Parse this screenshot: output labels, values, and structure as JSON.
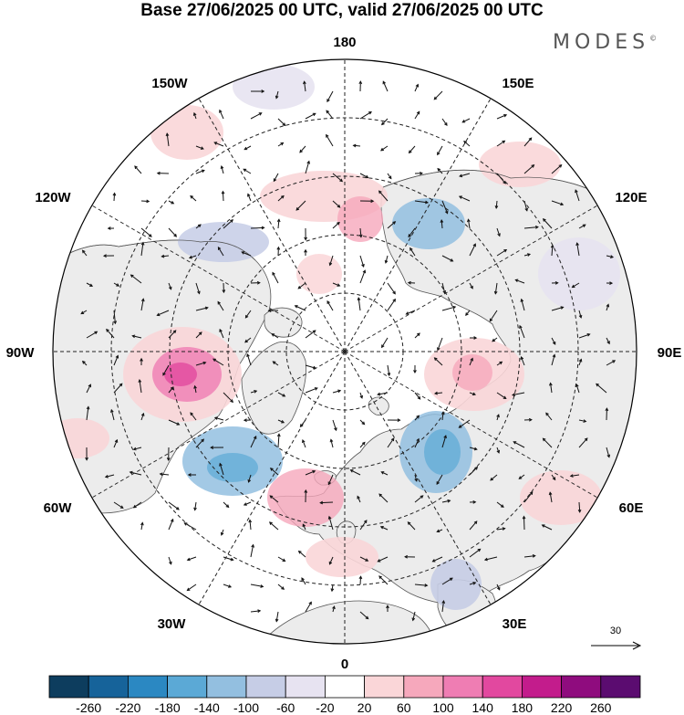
{
  "header": {
    "title": "Base 27/06/2025 00 UTC, valid 27/06/2025 00 UTC",
    "brand": "MODES",
    "brand_mark": "©"
  },
  "map": {
    "projection": "north-polar-stereographic",
    "longitude_labels": [
      {
        "name": "lon-label-180",
        "text": "180"
      },
      {
        "name": "lon-label-150e",
        "text": "150E"
      },
      {
        "name": "lon-label-120e",
        "text": "120E"
      },
      {
        "name": "lon-label-90e",
        "text": "90E"
      },
      {
        "name": "lon-label-60e",
        "text": "60E"
      },
      {
        "name": "lon-label-30e",
        "text": "30E"
      },
      {
        "name": "lon-label-0",
        "text": "0"
      },
      {
        "name": "lon-label-30w",
        "text": "30W"
      },
      {
        "name": "lon-label-60w",
        "text": "60W"
      },
      {
        "name": "lon-label-90w",
        "text": "90W"
      },
      {
        "name": "lon-label-120w",
        "text": "120W"
      },
      {
        "name": "lon-label-150w",
        "text": "150W"
      }
    ],
    "vector_reference": {
      "value": "30"
    },
    "colors": {
      "land": "#ececec",
      "ocean": "#ffffff",
      "coast": "#555555",
      "graticule": "#222222"
    }
  },
  "colorbar": {
    "tick_labels": [
      "-260",
      "-220",
      "-180",
      "-140",
      "-100",
      "-60",
      "-20",
      "20",
      "60",
      "100",
      "140",
      "180",
      "220",
      "260"
    ],
    "colors": [
      "#0d3d5e",
      "#16639a",
      "#2b88c2",
      "#5ba9d6",
      "#93bfe0",
      "#c6cde6",
      "#e7e3f1",
      "#ffffff",
      "#fad6d8",
      "#f6a8bc",
      "#ef7db3",
      "#e2489f",
      "#c31c8c",
      "#8f0c7e",
      "#5b0c70"
    ]
  }
}
